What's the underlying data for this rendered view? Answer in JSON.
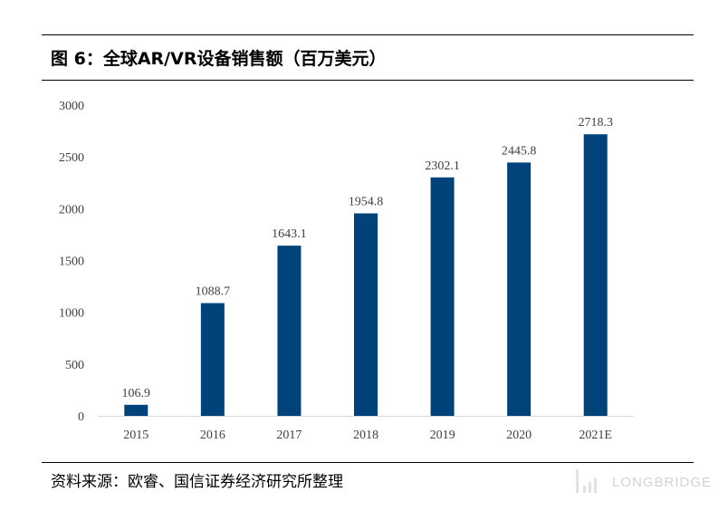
{
  "figure": {
    "title": "图 6：全球AR/VR设备销售额（百万美元）",
    "source": "资料来源：欧睿、国信证券经济研究所整理",
    "watermark": "LONGBRIDGE"
  },
  "colors": {
    "bar": "#00437a",
    "axis": "#d9d9d9",
    "text": "#404040"
  },
  "chart_data": {
    "type": "bar",
    "categories": [
      "2015",
      "2016",
      "2017",
      "2018",
      "2019",
      "2020",
      "2021E"
    ],
    "values": [
      106.9,
      1088.7,
      1643.1,
      1954.8,
      2302.1,
      2445.8,
      2718.3
    ],
    "data_labels": [
      "106.9",
      "1088.7",
      "1643.1",
      "1954.8",
      "2302.1",
      "2445.8",
      "2718.3"
    ],
    "title": "图 6：全球AR/VR设备销售额（百万美元）",
    "xlabel": "",
    "ylabel": "",
    "ylim": [
      0,
      3000
    ],
    "yticks": [
      0,
      500,
      1000,
      1500,
      2000,
      2500,
      3000
    ],
    "grid": false,
    "legend": "none"
  }
}
